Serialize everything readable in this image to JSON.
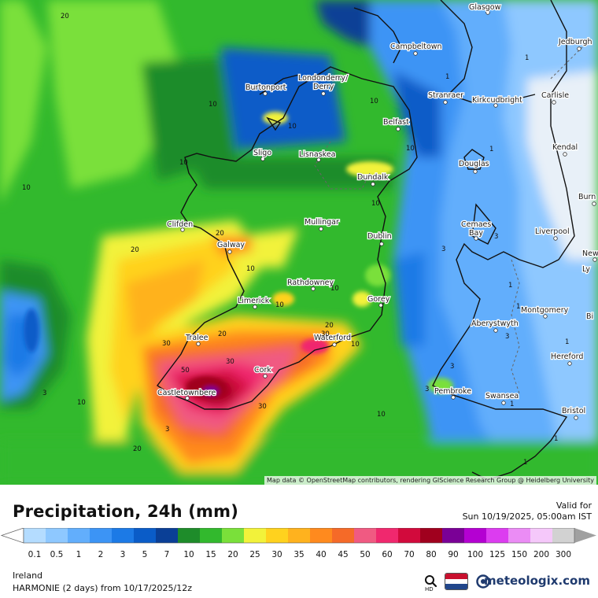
{
  "map": {
    "cities": [
      {
        "name": "Glasgow"
      },
      {
        "name": "Campbeltown"
      },
      {
        "name": "Jedburgh"
      },
      {
        "name": "Londonderry/"
      },
      {
        "name": "Derry"
      },
      {
        "name": "Burtonport"
      },
      {
        "name": "Stranraer"
      },
      {
        "name": "Kirkcudbright"
      },
      {
        "name": "Carlisle"
      },
      {
        "name": "Belfast"
      },
      {
        "name": "Sligo"
      },
      {
        "name": "Lisnaskea"
      },
      {
        "name": "Kendal"
      },
      {
        "name": "Douglas"
      },
      {
        "name": "Dundalk"
      },
      {
        "name": "Burn"
      },
      {
        "name": "Clifden"
      },
      {
        "name": "Mullingar"
      },
      {
        "name": "Cemaes"
      },
      {
        "name": "Bay"
      },
      {
        "name": "Liverpool"
      },
      {
        "name": "Galway"
      },
      {
        "name": "Dublin"
      },
      {
        "name": "Newc"
      },
      {
        "name": "Ly"
      },
      {
        "name": "Rathdowney"
      },
      {
        "name": "Limerick"
      },
      {
        "name": "Gorey"
      },
      {
        "name": "Montgomery"
      },
      {
        "name": "Aberystwyth"
      },
      {
        "name": "Bi"
      },
      {
        "name": "Tralee"
      },
      {
        "name": "Waterford"
      },
      {
        "name": "Hereford"
      },
      {
        "name": "Cork"
      },
      {
        "name": "Castletownbere"
      },
      {
        "name": "Pembroke"
      },
      {
        "name": "Swansea"
      },
      {
        "name": "Bristol"
      }
    ],
    "contour_labels": [
      "20",
      "10",
      "10",
      "10",
      "10",
      "10",
      "10",
      "1",
      "1",
      "1",
      "10",
      "20",
      "20",
      "10",
      "10",
      "10",
      "3",
      "3",
      "1",
      "1",
      "3",
      "10",
      "20",
      "30",
      "30",
      "30",
      "50",
      "20",
      "3",
      "3",
      "10",
      "30",
      "20",
      "10",
      "1",
      "3",
      "3",
      "1",
      "1",
      "1"
    ],
    "attribution": "Map data © OpenStreetMap contributors, rendering GIScience Research Group @ Heidelberg University"
  },
  "header": {
    "title": "Precipitation, 24h (mm)",
    "valid_label": "Valid for",
    "valid_date": "Sun 10/19/2025, 05:00am IST"
  },
  "legend": {
    "bins": [
      {
        "label": "0.1",
        "color": "#b4dcff"
      },
      {
        "label": "0.5",
        "color": "#8ec8ff"
      },
      {
        "label": "1",
        "color": "#62aefc"
      },
      {
        "label": "2",
        "color": "#3c94f5"
      },
      {
        "label": "3",
        "color": "#1c7ae6"
      },
      {
        "label": "5",
        "color": "#0a5cc8"
      },
      {
        "label": "7",
        "color": "#0a3f96"
      },
      {
        "label": "10",
        "color": "#1e8c2a"
      },
      {
        "label": "15",
        "color": "#32b92d"
      },
      {
        "label": "20",
        "color": "#7ae03a"
      },
      {
        "label": "25",
        "color": "#f2f23a"
      },
      {
        "label": "30",
        "color": "#ffd21e"
      },
      {
        "label": "35",
        "color": "#ffb21e"
      },
      {
        "label": "40",
        "color": "#ff8a1e"
      },
      {
        "label": "45",
        "color": "#f56a28"
      },
      {
        "label": "50",
        "color": "#f05a82"
      },
      {
        "label": "60",
        "color": "#f0286e"
      },
      {
        "label": "70",
        "color": "#d20a3c"
      },
      {
        "label": "80",
        "color": "#a0001e"
      },
      {
        "label": "90",
        "color": "#7a0096"
      },
      {
        "label": "100",
        "color": "#b400d2"
      },
      {
        "label": "125",
        "color": "#dc3cf0"
      },
      {
        "label": "150",
        "color": "#eb8cf5"
      },
      {
        "label": "200",
        "color": "#f5c8fa"
      },
      {
        "label": "300",
        "color": "#d2d2d2"
      }
    ],
    "end_color": "#a0a0a0"
  },
  "footer": {
    "region": "Ireland",
    "model": "HARMONIE (2 days) from  10/17/2025/12z",
    "brand": "meteologix.com",
    "hd_label": "HD"
  },
  "icons": [
    "zoom-hd-icon",
    "netherlands-flag-icon",
    "meteologix-logo-icon"
  ]
}
